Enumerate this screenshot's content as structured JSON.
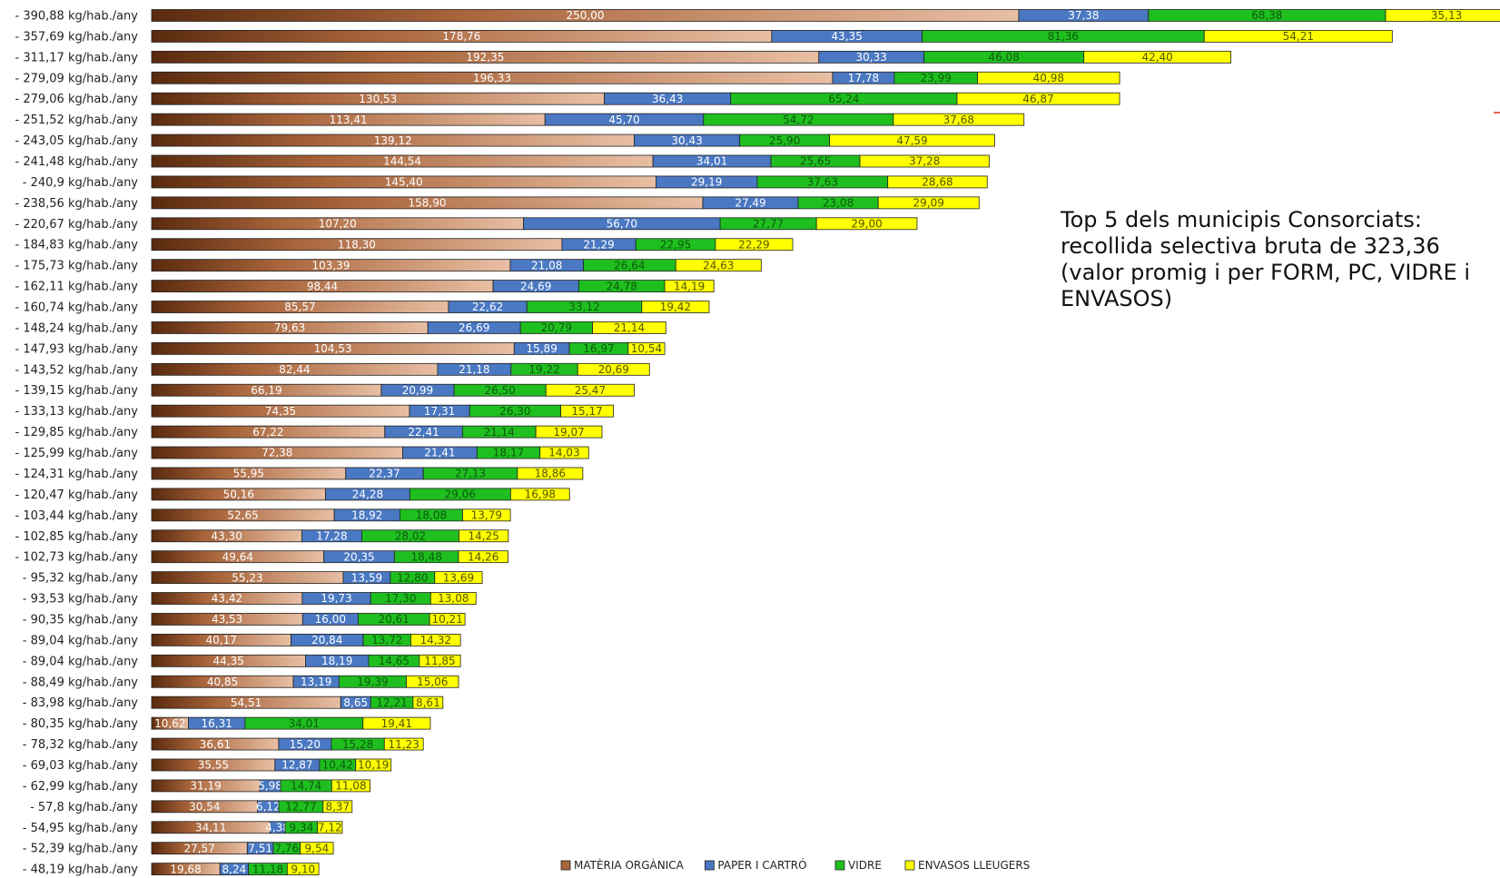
{
  "chart_data": {
    "type": "bar",
    "orientation": "horizontal",
    "stacked": true,
    "title": "",
    "xlabel": "",
    "ylabel": "",
    "categories": [
      "- 390,88 kg/hab./any",
      "- 357,69 kg/hab./any",
      "- 311,17 kg/hab./any",
      "- 279,09 kg/hab./any",
      "- 279,06 kg/hab./any",
      "- 251,52 kg/hab./any",
      "- 243,05 kg/hab./any",
      "- 241,48 kg/hab./any",
      "- 240,9 kg/hab./any",
      "- 238,56 kg/hab./any",
      "- 220,67 kg/hab./any",
      "- 184,83 kg/hab./any",
      "- 175,73 kg/hab./any",
      "- 162,11 kg/hab./any",
      "- 160,74 kg/hab./any",
      "- 148,24 kg/hab./any",
      "- 147,93 kg/hab./any",
      "- 143,52 kg/hab./any",
      "- 139,15 kg/hab./any",
      "- 133,13 kg/hab./any",
      "- 129,85 kg/hab./any",
      "- 125,99 kg/hab./any",
      "- 124,31 kg/hab./any",
      "- 120,47 kg/hab./any",
      "- 103,44 kg/hab./any",
      "- 102,85 kg/hab./any",
      "- 102,73 kg/hab./any",
      "- 95,32 kg/hab./any",
      "- 93,53 kg/hab./any",
      "- 90,35 kg/hab./any",
      "- 89,04 kg/hab./any",
      "- 89,04 kg/hab./any",
      "- 88,49 kg/hab./any",
      "- 83,98 kg/hab./any",
      "- 80,35 kg/hab./any",
      "- 78,32 kg/hab./any",
      "- 69,03 kg/hab./any",
      "- 62,99 kg/hab./any",
      "- 57,8 kg/hab./any",
      "- 54,95 kg/hab./any",
      "- 52,39 kg/hab./any",
      "- 48,19 kg/hab./any"
    ],
    "series": [
      {
        "name": "MATÈRIA ORGÀNICA",
        "color": "#a8643a",
        "label_color": "#ffffff",
        "values": [
          250.0,
          178.76,
          192.35,
          196.33,
          130.53,
          113.41,
          139.12,
          144.54,
          145.4,
          158.9,
          107.2,
          118.3,
          103.39,
          98.44,
          85.57,
          79.63,
          104.53,
          82.44,
          66.19,
          74.35,
          67.22,
          72.38,
          55.95,
          50.16,
          52.65,
          43.3,
          49.64,
          55.23,
          43.42,
          43.53,
          40.17,
          44.35,
          40.85,
          54.51,
          10.62,
          36.61,
          35.55,
          31.19,
          30.54,
          34.11,
          27.57,
          19.68
        ],
        "labels": [
          "250,00",
          "178,76",
          "192,35",
          "196,33",
          "130,53",
          "113,41",
          "139,12",
          "144,54",
          "145,40",
          "158,90",
          "107,20",
          "118,30",
          "103,39",
          "98,44",
          "85,57",
          "79,63",
          "104,53",
          "82,44",
          "66,19",
          "74,35",
          "67,22",
          "72,38",
          "55,95",
          "50,16",
          "52,65",
          "43,30",
          "49,64",
          "55,23",
          "43,42",
          "43,53",
          "40,17",
          "44,35",
          "40,85",
          "54,51",
          "10,62",
          "36,61",
          "35,55",
          "31,19",
          "30,54",
          "34,11",
          "27,57",
          "19,68"
        ]
      },
      {
        "name": "PAPER I CARTRÓ",
        "color": "#4a78c2",
        "label_color": "#ffffff",
        "values": [
          37.38,
          43.35,
          30.33,
          17.78,
          36.43,
          45.7,
          30.43,
          34.01,
          29.19,
          27.49,
          56.7,
          21.29,
          21.08,
          24.69,
          22.62,
          26.69,
          15.89,
          21.18,
          20.99,
          17.31,
          22.41,
          21.41,
          22.37,
          24.28,
          18.92,
          17.28,
          20.35,
          13.59,
          19.73,
          16.0,
          20.84,
          18.19,
          13.19,
          8.65,
          16.31,
          15.2,
          12.87,
          5.98,
          6.12,
          4.38,
          7.51,
          8.24
        ],
        "labels": [
          "37,38",
          "43,35",
          "30,33",
          "17,78",
          "36,43",
          "45,70",
          "30,43",
          "34,01",
          "29,19",
          "27,49",
          "56,70",
          "21,29",
          "21,08",
          "24,69",
          "22,62",
          "26,69",
          "15,89",
          "21,18",
          "20,99",
          "17,31",
          "22,41",
          "21,41",
          "22,37",
          "24,28",
          "18,92",
          "17,28",
          "20,35",
          "13,59",
          "19,73",
          "16,00",
          "20,84",
          "18,19",
          "13,19",
          "8,65",
          "16,31",
          "15,20",
          "12,87",
          "5,98",
          "6,12",
          "4,38",
          "7,51",
          "8,24"
        ]
      },
      {
        "name": "VIDRE",
        "color": "#1fbf1f",
        "label_color": "#0c5a0c",
        "values": [
          68.38,
          81.36,
          46.08,
          23.99,
          65.24,
          54.72,
          25.9,
          25.65,
          37.63,
          23.08,
          27.77,
          22.95,
          26.64,
          24.78,
          33.12,
          20.79,
          16.97,
          19.22,
          26.5,
          26.3,
          21.14,
          18.17,
          27.13,
          29.06,
          18.08,
          28.02,
          18.48,
          12.8,
          17.3,
          20.61,
          13.72,
          14.65,
          19.39,
          12.21,
          34.01,
          15.28,
          10.42,
          14.74,
          12.77,
          9.34,
          7.76,
          11.18
        ],
        "labels": [
          "68,38",
          "81,36",
          "46,08",
          "23,99",
          "65,24",
          "54,72",
          "25,90",
          "25,65",
          "37,63",
          "23,08",
          "27,77",
          "22,95",
          "26,64",
          "24,78",
          "33,12",
          "20,79",
          "16,97",
          "19,22",
          "26,50",
          "26,30",
          "21,14",
          "18,17",
          "27,13",
          "29,06",
          "18,08",
          "28,02",
          "18,48",
          "12,80",
          "17,30",
          "20,61",
          "13,72",
          "14,65",
          "19,39",
          "12,21",
          "34,01",
          "15,28",
          "10,42",
          "14,74",
          "12,77",
          "9,34",
          "7,76",
          "11,18"
        ]
      },
      {
        "name": "ENVASOS LLEUGERS",
        "color": "#ffff00",
        "label_color": "#555500",
        "values": [
          35.13,
          54.21,
          42.4,
          40.98,
          46.87,
          37.68,
          47.59,
          37.28,
          28.68,
          29.09,
          29.0,
          22.29,
          24.63,
          14.19,
          19.42,
          21.14,
          10.54,
          20.69,
          25.47,
          15.17,
          19.07,
          14.03,
          18.86,
          16.98,
          13.79,
          14.25,
          14.26,
          13.69,
          13.08,
          10.21,
          14.32,
          11.85,
          15.06,
          8.61,
          19.41,
          11.23,
          10.19,
          11.08,
          8.37,
          7.12,
          9.54,
          9.1
        ],
        "labels": [
          "35,13",
          "54,21",
          "42,40",
          "40,98",
          "46,87",
          "37,68",
          "47,59",
          "37,28",
          "28,68",
          "29,09",
          "29,00",
          "22,29",
          "24,63",
          "14,19",
          "19,42",
          "21,14",
          "10,54",
          "20,69",
          "25,47",
          "15,17",
          "19,07",
          "14,03",
          "18,86",
          "16,98",
          "13,79",
          "14,25",
          "14,26",
          "13,69",
          "13,08",
          "10,21",
          "14,32",
          "11,85",
          "15,06",
          "8,61",
          "19,41",
          "11,23",
          "10,19",
          "11,08",
          "8,37",
          "7,12",
          "9,54",
          "9,10"
        ]
      }
    ],
    "xlim": [
      0,
      420
    ],
    "grid": false,
    "legend": "bottom",
    "annotation": "Top 5 dels municipis Consorciats:\nrecollida selectiva  bruta de 323,36\n(valor promig i per FORM, PC, VIDRE i\nENVASOS)"
  }
}
